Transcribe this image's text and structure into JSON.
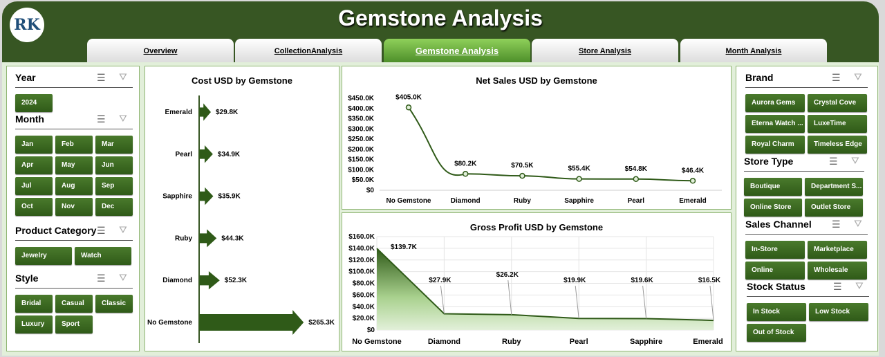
{
  "header": {
    "title": "Gemstone Analysis",
    "logo_text": "RK"
  },
  "tabs": [
    {
      "label": "Overview"
    },
    {
      "label": "CollectionAnalysis"
    },
    {
      "label": "Gemstone Analysis",
      "active": true
    },
    {
      "label": "Store Analysis"
    },
    {
      "label": "Month Analysis"
    }
  ],
  "colors": {
    "dark_green": "#375623",
    "button_green": "#3b6b22",
    "background": "#e2efda"
  },
  "icons": {
    "multi_select": "multi-select-icon",
    "clear_filter": "clear-filter-icon"
  },
  "slicers_left": [
    {
      "title": "Year",
      "items": [
        "2024"
      ]
    },
    {
      "title": "Month",
      "items": [
        "Jan",
        "Feb",
        "Mar",
        "Apr",
        "May",
        "Jun",
        "Jul",
        "Aug",
        "Sep",
        "Oct",
        "Nov",
        "Dec"
      ]
    },
    {
      "title": "Product Category",
      "items": [
        "Jewelry",
        "Watch"
      ]
    },
    {
      "title": "Style",
      "items": [
        "Bridal",
        "Casual",
        "Classic",
        "Luxury",
        "Sport"
      ]
    }
  ],
  "slicers_right": [
    {
      "title": "Brand",
      "items": [
        "Aurora Gems",
        "Crystal Cove",
        "Eterna Watch ...",
        "LuxeTime",
        "Royal Charm",
        "Timeless Edge"
      ]
    },
    {
      "title": "Store Type",
      "items": [
        "Boutique",
        "Department S...",
        "Online Store",
        "Outlet Store"
      ]
    },
    {
      "title": "Sales Channel",
      "items": [
        "In-Store",
        "Marketplace",
        "Online",
        "Wholesale"
      ]
    },
    {
      "title": "Stock Status",
      "items": [
        "In Stock",
        "Low Stock",
        "Out of Stock"
      ]
    }
  ],
  "chart_data": [
    {
      "type": "bar",
      "title": "Cost USD by Gemstone",
      "orientation": "horizontal",
      "categories": [
        "Emerald",
        "Pearl",
        "Sapphire",
        "Ruby",
        "Diamond",
        "No Gemstone"
      ],
      "values": [
        29.8,
        34.9,
        35.9,
        44.3,
        52.3,
        265.3
      ],
      "labels": [
        "$29.8K",
        "$34.9K",
        "$35.9K",
        "$44.3K",
        "$52.3K",
        "$265.3K"
      ],
      "unit": "K USD"
    },
    {
      "type": "line",
      "title": "Net Sales USD by Gemstone",
      "categories": [
        "No Gemstone",
        "Diamond",
        "Ruby",
        "Sapphire",
        "Pearl",
        "Emerald"
      ],
      "values": [
        405.0,
        80.2,
        70.5,
        55.4,
        54.8,
        46.4
      ],
      "labels": [
        "$405.0K",
        "$80.2K",
        "$70.5K",
        "$55.4K",
        "$54.8K",
        "$46.4K"
      ],
      "ylim": [
        0,
        450
      ],
      "yticks": [
        "$0",
        "$50.0K",
        "$100.0K",
        "$150.0K",
        "$200.0K",
        "$250.0K",
        "$300.0K",
        "$350.0K",
        "$400.0K",
        "$450.0K"
      ],
      "smooth": true
    },
    {
      "type": "area",
      "title": "Gross Profit USD by Gemstone",
      "categories": [
        "No Gemstone",
        "Diamond",
        "Ruby",
        "Pearl",
        "Sapphire",
        "Emerald"
      ],
      "values": [
        139.7,
        27.9,
        26.2,
        19.9,
        19.6,
        16.5
      ],
      "labels": [
        "$139.7K",
        "$27.9K",
        "$26.2K",
        "$19.9K",
        "$19.6K",
        "$16.5K"
      ],
      "ylim": [
        0,
        160
      ],
      "yticks": [
        "$0",
        "$20.0K",
        "$40.0K",
        "$60.0K",
        "$80.0K",
        "$100.0K",
        "$120.0K",
        "$140.0K",
        "$160.0K"
      ],
      "grid": true
    }
  ]
}
